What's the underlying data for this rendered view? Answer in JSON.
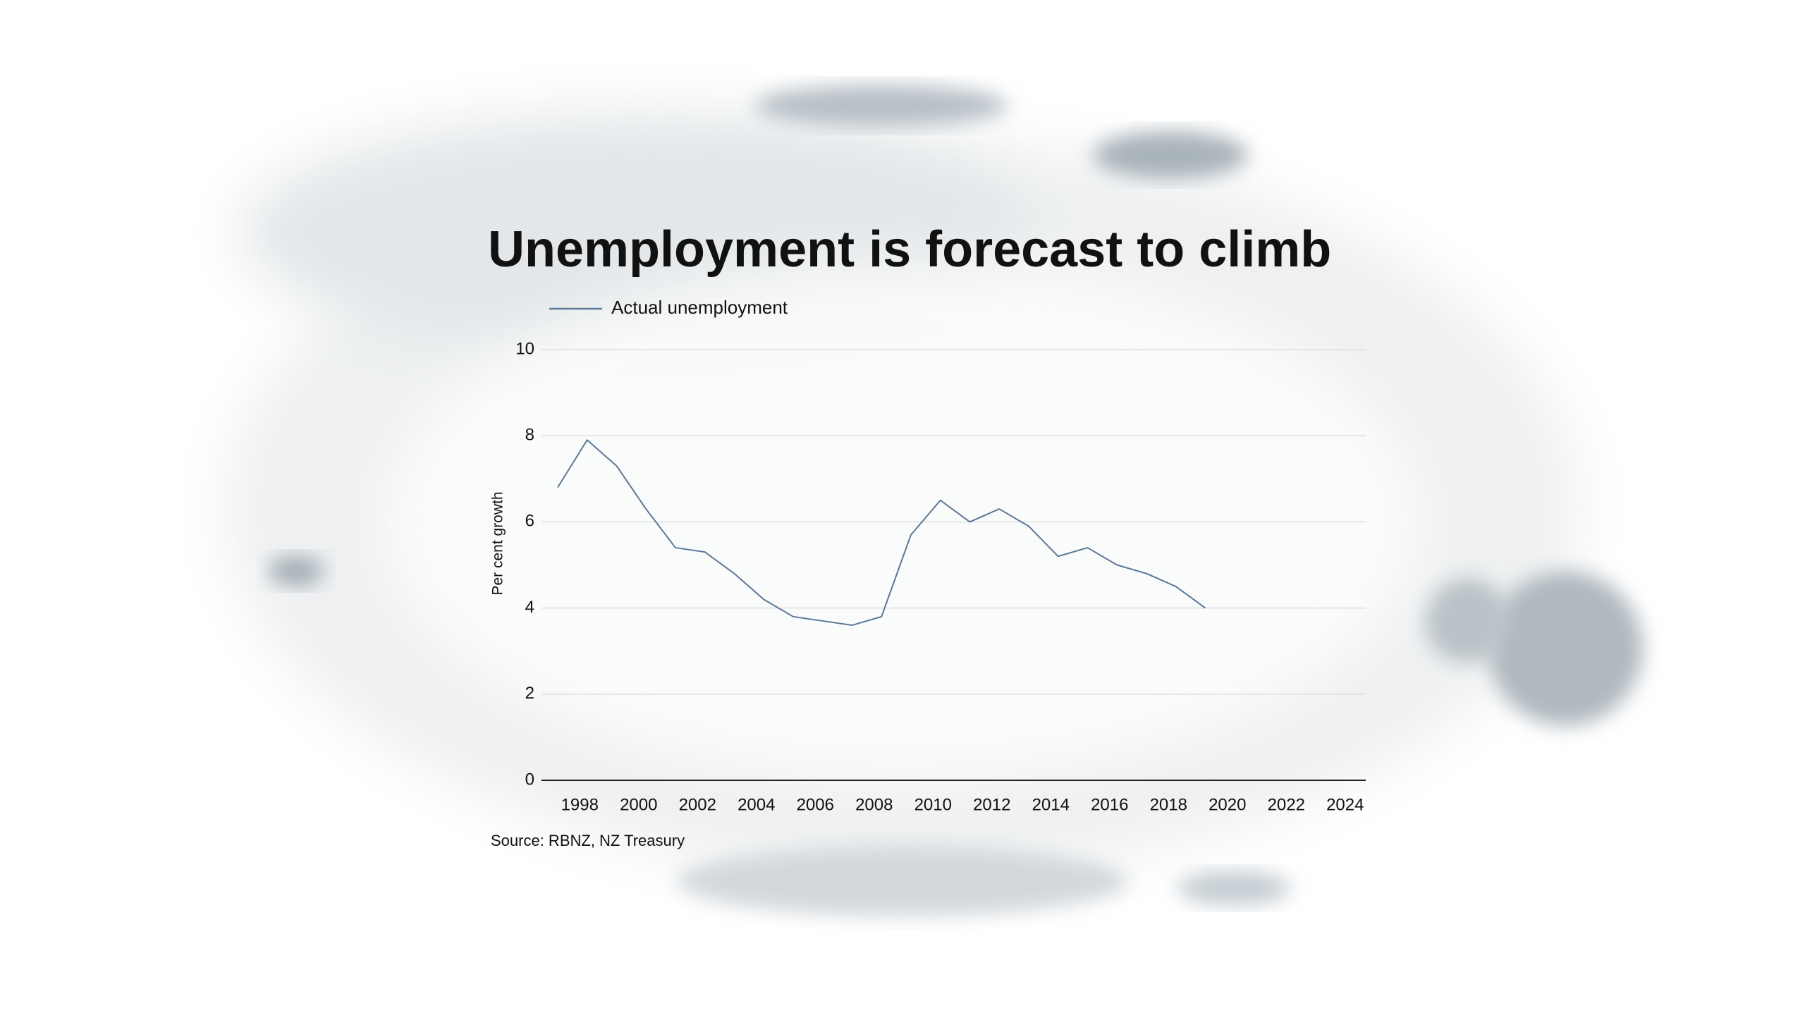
{
  "chart_data": {
    "type": "line",
    "title": "Unemployment is forecast to climb",
    "y_label": "Per cent growth",
    "source": "Source: RBNZ, NZ Treasury",
    "x": [
      1997.25,
      1998.25,
      1999.25,
      2000.25,
      2001.25,
      2002.25,
      2003.25,
      2004.25,
      2005.25,
      2006.25,
      2007.25,
      2008.25,
      2009.25,
      2010.25,
      2011.25,
      2012.25,
      2013.25,
      2014.25,
      2015.25,
      2016.25,
      2017.25,
      2018.25,
      2019.25
    ],
    "series": [
      {
        "name": "Actual unemployment",
        "color": "#5b7896",
        "values": [
          6.8,
          7.9,
          7.3,
          6.3,
          5.4,
          5.3,
          4.8,
          4.2,
          3.8,
          3.7,
          3.6,
          3.8,
          5.7,
          6.5,
          6.0,
          6.3,
          5.9,
          5.2,
          5.4,
          5.0,
          4.8,
          4.5,
          4.0
        ]
      }
    ],
    "xlim": [
      1996.7,
      2024.7
    ],
    "xticks": [
      1998,
      2000,
      2002,
      2004,
      2006,
      2008,
      2010,
      2012,
      2014,
      2016,
      2018,
      2020,
      2022,
      2024
    ],
    "ylim": [
      0,
      10
    ],
    "yticks": [
      0,
      2,
      4,
      6,
      8,
      10
    ],
    "grid": true
  }
}
